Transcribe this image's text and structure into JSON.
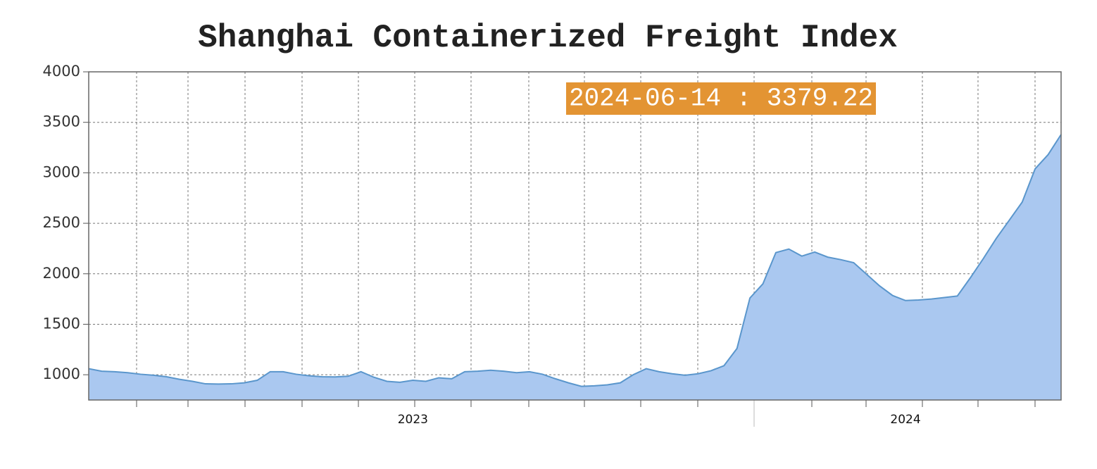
{
  "chart_data": {
    "type": "area",
    "title": "Shanghai Containerized Freight Index",
    "annotation": "2024-06-14 : 3379.22",
    "categories": [
      null,
      null,
      null,
      null,
      null,
      null,
      null,
      null,
      null,
      null,
      null,
      null,
      null,
      null,
      null,
      null,
      null,
      null,
      null,
      null,
      null,
      null,
      null,
      null,
      null,
      "2023",
      null,
      null,
      null,
      null,
      null,
      null,
      null,
      null,
      null,
      null,
      null,
      null,
      null,
      null,
      null,
      null,
      null,
      null,
      null,
      null,
      null,
      null,
      null,
      null,
      null,
      null,
      null,
      null,
      null,
      null,
      null,
      null,
      null,
      null,
      null,
      null,
      null,
      "2024",
      null,
      null,
      null,
      null,
      null,
      null,
      null,
      null,
      null,
      null,
      null,
      null
    ],
    "values": [
      1060,
      1035,
      1030,
      1020,
      1005,
      995,
      980,
      955,
      935,
      910,
      908,
      910,
      920,
      945,
      1030,
      1030,
      1005,
      990,
      980,
      978,
      985,
      1030,
      975,
      935,
      925,
      945,
      935,
      970,
      960,
      1030,
      1035,
      1045,
      1035,
      1020,
      1030,
      1005,
      960,
      920,
      885,
      890,
      900,
      920,
      1000,
      1060,
      1030,
      1010,
      995,
      1010,
      1040,
      1090,
      1260,
      1760,
      1900,
      2210,
      2245,
      2175,
      2215,
      2165,
      2140,
      2110,
      1995,
      1880,
      1785,
      1735,
      1740,
      1750,
      1765,
      1780,
      1960,
      2150,
      2350,
      2530,
      2710,
      3040,
      3180,
      3379.22
    ],
    "color": "#aac8f0",
    "line_color": "#5a96cc",
    "ylim": [
      750,
      4000
    ],
    "yticks": [
      1000,
      1500,
      2000,
      2500,
      3000,
      3500,
      4000
    ],
    "grid": true
  }
}
